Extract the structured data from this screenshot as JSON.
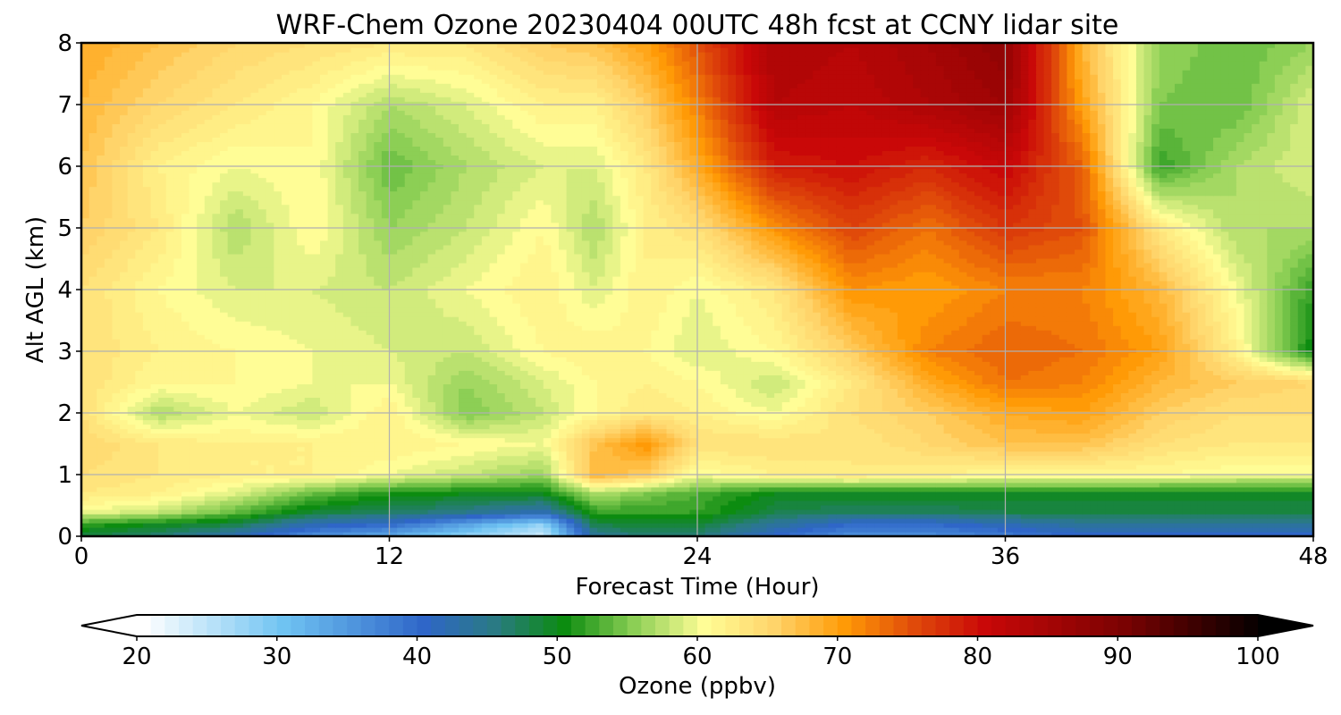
{
  "chart_data": {
    "type": "heatmap",
    "title": "WRF-Chem Ozone  20230404 00UTC 48h fcst at CCNY lidar site",
    "xlabel": "Forecast Time (Hour)",
    "ylabel": "Alt AGL (km)",
    "xlim": [
      0,
      48
    ],
    "ylim": [
      0,
      8
    ],
    "xticks": [
      0,
      12,
      24,
      36,
      48
    ],
    "yticks": [
      0,
      1,
      2,
      3,
      4,
      5,
      6,
      7,
      8
    ],
    "grid": true,
    "colorbar": {
      "label": "Ozone  (ppbv)",
      "min": 20,
      "max": 100,
      "ticks": [
        20,
        30,
        40,
        50,
        60,
        70,
        80,
        90,
        100
      ],
      "extend": "both",
      "stops": [
        {
          "v": 20,
          "c": "#ffffff"
        },
        {
          "v": 30,
          "c": "#6fc3f2"
        },
        {
          "v": 40,
          "c": "#2f66c8"
        },
        {
          "v": 45,
          "c": "#2a7a84"
        },
        {
          "v": 50,
          "c": "#0c8c10"
        },
        {
          "v": 55,
          "c": "#8ccf55"
        },
        {
          "v": 60,
          "c": "#fffd96"
        },
        {
          "v": 65,
          "c": "#ffd46a"
        },
        {
          "v": 70,
          "c": "#ff9a06"
        },
        {
          "v": 75,
          "c": "#e04a0a"
        },
        {
          "v": 80,
          "c": "#c90808"
        },
        {
          "v": 90,
          "c": "#7a0202"
        },
        {
          "v": 100,
          "c": "#000000"
        }
      ]
    },
    "x": [
      0,
      3,
      6,
      9,
      12,
      15,
      18,
      20,
      22,
      24,
      27,
      30,
      33,
      36,
      39,
      42,
      45,
      48
    ],
    "y": [
      0,
      0.2,
      0.4,
      0.7,
      1,
      1.5,
      2,
      2.5,
      3,
      4,
      5,
      6,
      7,
      8
    ],
    "z": [
      [
        48,
        46,
        42,
        36,
        33,
        28,
        24,
        44,
        46,
        46,
        40,
        36,
        36,
        38,
        40,
        40,
        40,
        40
      ],
      [
        52,
        50,
        48,
        42,
        40,
        34,
        28,
        48,
        49,
        49,
        44,
        40,
        40,
        42,
        44,
        44,
        44,
        44
      ],
      [
        60,
        58,
        54,
        49,
        47,
        45,
        42,
        52,
        52,
        52,
        48,
        47,
        47,
        48,
        48,
        48,
        48,
        48
      ],
      [
        63,
        62,
        59,
        54,
        51,
        50,
        50,
        57,
        55,
        53,
        50,
        50,
        50,
        50,
        50,
        50,
        50,
        50
      ],
      [
        64,
        63,
        62,
        62,
        60,
        58,
        56,
        68,
        66,
        60,
        62,
        63,
        62,
        61,
        61,
        61,
        60,
        60
      ],
      [
        65,
        63,
        62,
        62,
        62,
        61,
        60,
        67,
        71,
        64,
        64,
        63,
        65,
        67,
        67,
        64,
        63,
        63
      ],
      [
        64,
        57,
        60,
        58,
        62,
        55,
        58,
        61,
        63,
        62,
        60,
        64,
        66,
        69,
        70,
        66,
        64,
        64
      ],
      [
        64,
        61,
        61,
        60,
        60,
        56,
        59,
        61,
        62,
        61,
        58,
        63,
        69,
        73,
        72,
        68,
        66,
        65
      ],
      [
        64,
        62,
        61,
        60,
        59,
        58,
        61,
        62,
        61,
        59,
        61,
        66,
        72,
        74,
        73,
        70,
        62,
        50
      ],
      [
        64,
        61,
        59,
        59,
        58,
        60,
        62,
        59,
        62,
        60,
        63,
        71,
        70,
        72,
        72,
        68,
        60,
        52
      ],
      [
        66,
        63,
        57,
        61,
        56,
        58,
        61,
        57,
        62,
        64,
        71,
        76,
        73,
        77,
        75,
        63,
        57,
        57
      ],
      [
        67,
        62,
        60,
        61,
        54,
        57,
        59,
        59,
        63,
        69,
        79,
        80,
        78,
        81,
        74,
        52,
        57,
        59
      ],
      [
        68,
        65,
        63,
        61,
        57,
        59,
        62,
        62,
        66,
        72,
        83,
        82,
        84,
        86,
        70,
        55,
        54,
        59
      ],
      [
        69,
        67,
        65,
        64,
        63,
        63,
        66,
        67,
        70,
        75,
        84,
        83,
        85,
        88,
        68,
        56,
        54,
        56
      ]
    ]
  }
}
